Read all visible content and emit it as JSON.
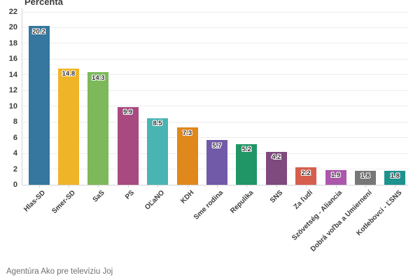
{
  "chart": {
    "title": "Percenta",
    "source": "Agentúra Ako pre televíziu Joj"
  },
  "chart_data": {
    "type": "bar",
    "title": "Percenta",
    "categories": [
      "Hlas-SD",
      "Smer-SD",
      "SaS",
      "PS",
      "OĽaNO",
      "KDH",
      "Sme rodina",
      "Repulika",
      "SNS",
      "Za ľudí",
      "Szövetség - Aliancia",
      "Dobrá voľba a Umiernení",
      "Kotlebovci - ĽSNS"
    ],
    "values": [
      20.2,
      14.8,
      14.3,
      9.9,
      8.5,
      7.3,
      5.7,
      5.2,
      4.2,
      2.2,
      1.9,
      1.8,
      1.8
    ],
    "bar_colors": [
      "#35779e",
      "#f0b428",
      "#7db85a",
      "#a84980",
      "#4ab4b2",
      "#e0881c",
      "#715aa7",
      "#209666",
      "#7f4a7d",
      "#d65e4c",
      "#ac57ac",
      "#787878",
      "#1e928e"
    ],
    "xlabel": "",
    "ylabel": "Percenta",
    "ylim": [
      0,
      22
    ],
    "y_tick_step": 2,
    "grid": true,
    "legend": false,
    "value_labels": true,
    "source": "Agentúra Ako pre televíziu Joj",
    "text_color": "#3c3c3c",
    "grid_color": "#ededed",
    "axis_color": "#d4d4d4"
  }
}
